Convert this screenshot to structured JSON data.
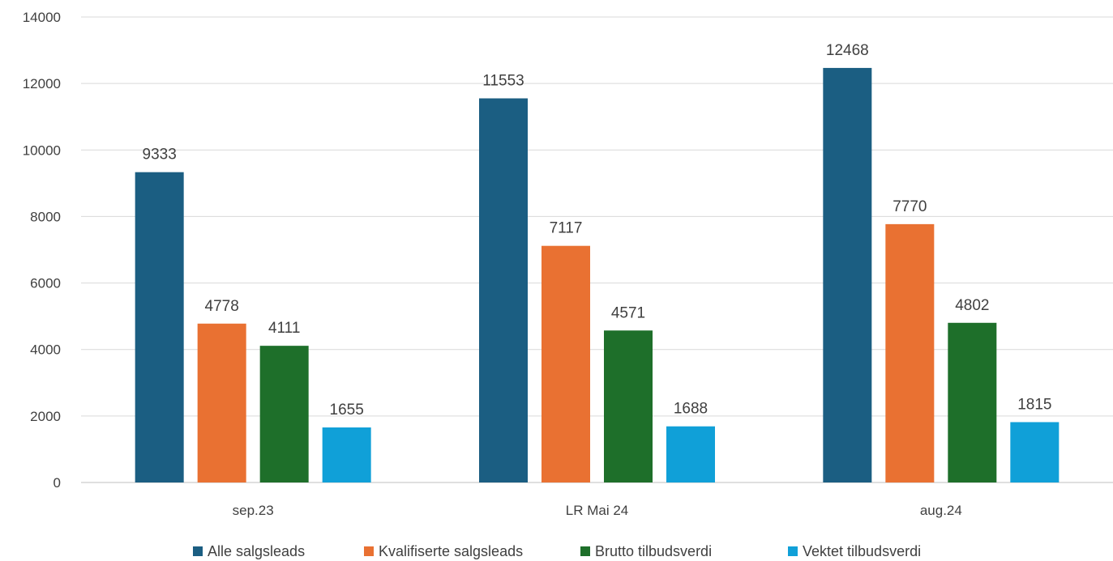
{
  "chart_data": {
    "type": "bar",
    "title": "",
    "xlabel": "",
    "ylabel": "",
    "categories": [
      "sep.23",
      "LR Mai 24",
      "aug.24"
    ],
    "series": [
      {
        "name": "Alle salgsleads",
        "values": [
          9333,
          11553,
          12468
        ],
        "color": "#1b5e82"
      },
      {
        "name": "Kvalifiserte salgsleads",
        "values": [
          4778,
          7117,
          7770
        ],
        "color": "#e97132"
      },
      {
        "name": "Brutto tilbudsverdi",
        "values": [
          4111,
          4571,
          4802
        ],
        "color": "#1e6f2a"
      },
      {
        "name": "Vektet tilbudsverdi",
        "values": [
          1655,
          1688,
          1815
        ],
        "color": "#10a0d8"
      }
    ],
    "ylim": [
      0,
      14000
    ],
    "yticks": [
      0,
      2000,
      4000,
      6000,
      8000,
      10000,
      12000,
      14000
    ],
    "grid": true,
    "legend_position": "bottom",
    "data_labels": true
  }
}
